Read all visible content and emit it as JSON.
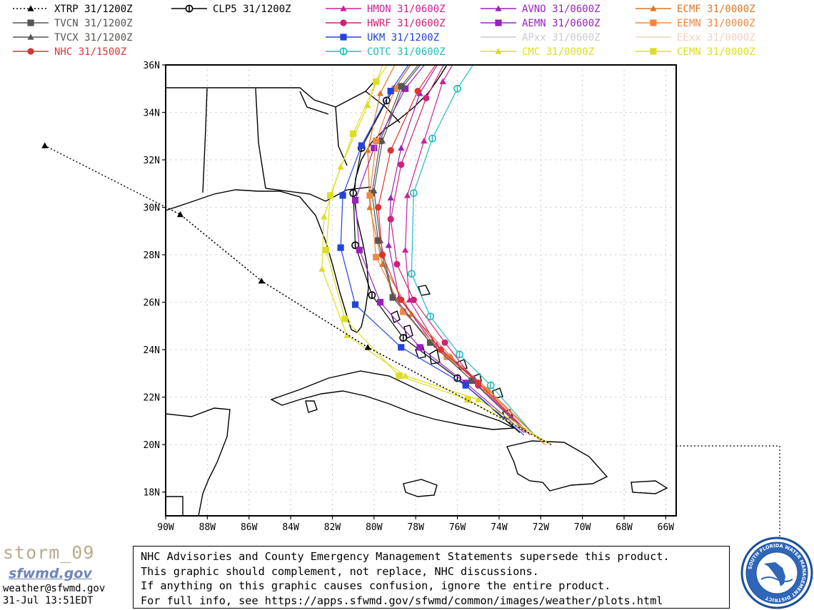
{
  "figure": {
    "lat_axis": [
      "36N",
      "34N",
      "32N",
      "30N",
      "28N",
      "26N",
      "24N",
      "22N",
      "20N",
      "18N"
    ],
    "lon_axis": [
      "90W",
      "88W",
      "86W",
      "84W",
      "82W",
      "80W",
      "78W",
      "76W",
      "74W",
      "72W",
      "70W",
      "68W",
      "66W"
    ]
  },
  "legend": [
    {
      "label": "XTRP  31/1200Z",
      "color": "#000000",
      "marker": "triangle",
      "line": "dotted"
    },
    {
      "label": "CLP5  31/1200Z",
      "color": "#000000",
      "marker": "circle-bar",
      "line": "solid"
    },
    {
      "label": "HMON  31/0600Z",
      "color": "#cc2299",
      "marker": "triangle",
      "line": "solid"
    },
    {
      "label": "AVNO  31/0600Z",
      "color": "#9922bb",
      "marker": "triangle",
      "line": "solid"
    },
    {
      "label": "ECMF  31/0000Z",
      "color": "#dd7722",
      "marker": "triangle",
      "line": "solid"
    },
    {
      "label": "TVCN  31/1200Z",
      "color": "#555555",
      "marker": "square",
      "line": "solid"
    },
    {
      "label": "HWRF  31/0600Z",
      "color": "#cc2277",
      "marker": "circle",
      "line": "solid"
    },
    {
      "label": "AEMN  31/0600Z",
      "color": "#9922bb",
      "marker": "square",
      "line": "solid"
    },
    {
      "label": "EEMN  31/0000Z",
      "color": "#ee8844",
      "marker": "square",
      "line": "solid"
    },
    {
      "label": "TVCX  31/1200Z",
      "color": "#555555",
      "marker": "triangle",
      "line": "solid"
    },
    {
      "label": "UKM   31/1200Z",
      "color": "#2244dd",
      "marker": "square",
      "line": "solid"
    },
    {
      "label": "APxx  31/0600Z",
      "color": "#cccccc",
      "marker": "none",
      "line": "solid"
    },
    {
      "label": "EExx  31/0000Z",
      "color": "#f2d2c0",
      "marker": "none",
      "line": "solid"
    },
    {
      "label": "NHC  31/1500Z",
      "color": "#dd3333",
      "marker": "circle",
      "line": "solid"
    },
    {
      "label": "COTC  31/0600Z",
      "color": "#22bbbb",
      "marker": "circle-bar",
      "line": "solid"
    },
    {
      "label": "CMC   31/0000Z",
      "color": "#dddd22",
      "marker": "triangle",
      "line": "solid"
    },
    {
      "label": "CEMN  31/0000Z",
      "color": "#dddd22",
      "marker": "square",
      "line": "solid"
    }
  ],
  "disclaimer": {
    "lines": [
      "NHC Advisories and County Emergency Management Statements supersede this product.",
      "This graphic should complement, not replace, NHC discussions.",
      "If anything on this graphic causes confusion, ignore the entire product.",
      "For full info, see  https://apps.sfwmd.gov/sfwmd/common/images/weather/plots.html"
    ]
  },
  "branding": {
    "storm_name": "storm_09",
    "logo_text": "sfwmd.gov",
    "email": "weather@sfwmd.gov",
    "issued": "31-Jul 13:51EDT",
    "seal_text": "SOUTH FLORIDA WATER MANAGEMENT DISTRICT"
  },
  "chart_data": {
    "type": "line",
    "coordinate_system": "lon_lat_degrees",
    "x_range": [
      -90,
      -65.5
    ],
    "y_range": [
      17,
      36
    ],
    "series": [
      {
        "name": "XTRP  31/1200Z",
        "points": [
          [
            -71.5,
            20.0
          ],
          [
            -80.3,
            24.1
          ],
          [
            -85.4,
            26.9
          ],
          [
            -89.3,
            29.7
          ],
          [
            -95.8,
            32.6
          ]
        ]
      },
      {
        "name": "CLP5  31/1200Z",
        "points": [
          [
            -73.0,
            20.5
          ],
          [
            -76.0,
            22.8
          ],
          [
            -78.6,
            24.5
          ],
          [
            -80.1,
            26.3
          ],
          [
            -80.9,
            28.4
          ],
          [
            -81.0,
            30.6
          ],
          [
            -80.6,
            32.5
          ],
          [
            -79.4,
            34.5
          ],
          [
            -78.1,
            36.2
          ]
        ]
      },
      {
        "name": "HMON  31/0600Z",
        "points": [
          [
            -72.6,
            20.5
          ],
          [
            -75.0,
            22.6
          ],
          [
            -77.0,
            24.2
          ],
          [
            -78.3,
            26.1
          ],
          [
            -78.5,
            28.2
          ],
          [
            -78.4,
            30.5
          ],
          [
            -77.6,
            32.8
          ],
          [
            -76.7,
            35.3
          ],
          [
            -76.1,
            36.2
          ]
        ]
      },
      {
        "name": "AVNO  31/0600Z",
        "points": [
          [
            -72.6,
            20.5
          ],
          [
            -75.2,
            22.8
          ],
          [
            -77.2,
            24.3
          ],
          [
            -78.8,
            26.2
          ],
          [
            -79.3,
            28.4
          ],
          [
            -79.2,
            30.4
          ],
          [
            -78.7,
            32.5
          ],
          [
            -77.8,
            34.8
          ],
          [
            -76.9,
            36.1
          ]
        ]
      },
      {
        "name": "ECMF  31/0000Z",
        "points": [
          [
            -71.8,
            20.0
          ],
          [
            -74.5,
            22.3
          ],
          [
            -76.3,
            23.7
          ],
          [
            -78.2,
            25.5
          ],
          [
            -79.6,
            27.6
          ],
          [
            -80.2,
            30.0
          ],
          [
            -80.3,
            32.4
          ],
          [
            -79.7,
            34.8
          ],
          [
            -79.0,
            36.0
          ]
        ]
      },
      {
        "name": "TVCN  31/1200Z",
        "points": [
          [
            -72.7,
            20.5
          ],
          [
            -75.3,
            22.7
          ],
          [
            -77.3,
            24.3
          ],
          [
            -79.1,
            26.2
          ],
          [
            -79.8,
            28.6
          ],
          [
            -80.1,
            30.6
          ],
          [
            -79.7,
            32.8
          ],
          [
            -78.7,
            35.1
          ],
          [
            -77.6,
            36.3
          ]
        ]
      },
      {
        "name": "HWRF  31/0600Z",
        "points": [
          [
            -72.5,
            20.4
          ],
          [
            -75.0,
            22.5
          ],
          [
            -76.6,
            24.3
          ],
          [
            -78.1,
            26.1
          ],
          [
            -78.9,
            27.6
          ],
          [
            -79.2,
            29.5
          ],
          [
            -78.7,
            31.8
          ],
          [
            -77.5,
            34.6
          ],
          [
            -76.6,
            36.1
          ]
        ]
      },
      {
        "name": "AEMN  31/0600Z",
        "points": [
          [
            -72.8,
            20.5
          ],
          [
            -75.6,
            22.6
          ],
          [
            -77.8,
            24.1
          ],
          [
            -79.7,
            26.0
          ],
          [
            -80.7,
            28.2
          ],
          [
            -80.9,
            30.3
          ],
          [
            -80.0,
            32.5
          ],
          [
            -78.5,
            35.0
          ],
          [
            -77.4,
            36.2
          ]
        ]
      },
      {
        "name": "EEMN  31/0000Z",
        "points": [
          [
            -71.8,
            20.0
          ],
          [
            -74.6,
            22.3
          ],
          [
            -76.5,
            23.7
          ],
          [
            -78.6,
            25.6
          ],
          [
            -79.9,
            27.9
          ],
          [
            -80.2,
            30.5
          ],
          [
            -79.9,
            32.8
          ],
          [
            -79.0,
            35.0
          ],
          [
            -78.2,
            36.1
          ]
        ]
      },
      {
        "name": "TVCX  31/1200Z",
        "points": [
          [
            -72.7,
            20.5
          ],
          [
            -75.3,
            22.7
          ],
          [
            -77.3,
            24.3
          ],
          [
            -79.1,
            26.3
          ],
          [
            -79.7,
            28.6
          ],
          [
            -80.0,
            30.7
          ],
          [
            -79.6,
            32.8
          ],
          [
            -78.6,
            35.1
          ],
          [
            -77.5,
            36.3
          ]
        ]
      },
      {
        "name": "UKM   31/1200Z",
        "points": [
          [
            -72.8,
            20.4
          ],
          [
            -75.6,
            22.5
          ],
          [
            -78.7,
            24.1
          ],
          [
            -80.9,
            25.9
          ],
          [
            -81.6,
            28.3
          ],
          [
            -81.5,
            30.5
          ],
          [
            -80.6,
            32.6
          ],
          [
            -79.2,
            34.9
          ],
          [
            -78.2,
            36.2
          ]
        ]
      },
      {
        "name": "NHC  31/1500Z",
        "points": [
          [
            -72.6,
            20.5
          ],
          [
            -75.0,
            22.6
          ],
          [
            -76.8,
            24.0
          ],
          [
            -78.7,
            26.1
          ],
          [
            -79.6,
            28.0
          ],
          [
            -79.8,
            30.0
          ],
          [
            -79.2,
            32.4
          ],
          [
            -77.9,
            34.9
          ],
          [
            -76.9,
            36.2
          ]
        ]
      },
      {
        "name": "COTC  31/0600Z",
        "points": [
          [
            -72.4,
            20.5
          ],
          [
            -74.4,
            22.5
          ],
          [
            -75.9,
            23.8
          ],
          [
            -77.3,
            25.4
          ],
          [
            -78.2,
            27.2
          ],
          [
            -78.1,
            30.6
          ],
          [
            -77.2,
            32.9
          ],
          [
            -76.0,
            35.0
          ],
          [
            -75.1,
            36.2
          ]
        ]
      },
      {
        "name": "CMC   31/0000Z",
        "points": [
          [
            -71.5,
            20.0
          ],
          [
            -75.0,
            21.9
          ],
          [
            -78.5,
            22.9
          ],
          [
            -81.3,
            24.6
          ],
          [
            -82.5,
            27.4
          ],
          [
            -82.4,
            29.6
          ],
          [
            -81.6,
            31.7
          ],
          [
            -80.3,
            34.3
          ],
          [
            -79.5,
            36.2
          ]
        ]
      },
      {
        "name": "CEMN  31/0000Z",
        "points": [
          [
            -71.5,
            20.0
          ],
          [
            -75.5,
            21.9
          ],
          [
            -78.8,
            22.9
          ],
          [
            -81.4,
            25.3
          ],
          [
            -82.3,
            28.2
          ],
          [
            -82.1,
            30.5
          ],
          [
            -81.0,
            33.1
          ],
          [
            -79.9,
            35.3
          ],
          [
            -79.2,
            36.2
          ]
        ]
      }
    ]
  }
}
